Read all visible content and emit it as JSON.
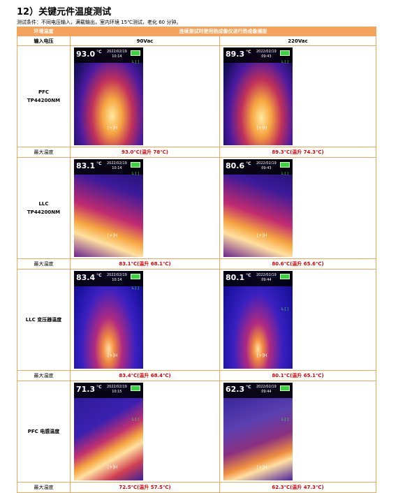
{
  "title": "12）关键元件温度测试",
  "subtitle": "测试条件：不同电压输入，满载输出，室内环境 15℃测试，老化 60 分钟。",
  "header": {
    "env": "环境温度",
    "note": "连续测试时使用热成像仪进行热成像捕捉"
  },
  "voltage_row": {
    "label": "输入电压",
    "v1": "90Vac",
    "v2": "220Vac"
  },
  "max_label": "最大温度",
  "rows": [
    {
      "label_line1": "PFC",
      "label_line2": "TP44200NM",
      "left": {
        "temp": "93.0",
        "date": "2022/02/19",
        "time": "10:14",
        "max": "93.0℃(温升 78℃)"
      },
      "right": {
        "temp": "89.3",
        "date": "2022/02/19",
        "time": "09:43",
        "max": "89.3℃(温升 74.3℃)"
      }
    },
    {
      "label_line1": "LLC",
      "label_line2": "TP44200NM",
      "left": {
        "temp": "83.1",
        "date": "2022/02/19",
        "time": "10:14",
        "max": "83.1℃(温升 68.1℃)"
      },
      "right": {
        "temp": "80.6",
        "date": "2022/02/19",
        "time": "09:43",
        "max": "80.6℃(温升 65.6℃)"
      }
    },
    {
      "label_line1": "LLC 变压器温度",
      "label_line2": "",
      "left": {
        "temp": "83.4",
        "date": "2022/02/19",
        "time": "10:14",
        "max": "83.4℃(温升 68.4℃)"
      },
      "right": {
        "temp": "80.1",
        "date": "2022/02/19",
        "time": "09:44",
        "max": "80.1℃(温升 65.1℃)"
      }
    },
    {
      "label_line1": "PFC 电感温度",
      "label_line2": "",
      "left": {
        "temp": "71.3",
        "date": "2022/02/19",
        "time": "10:15",
        "max": "72.5℃(温升 57.5℃)"
      },
      "right": {
        "temp": "62.3",
        "date": "2022/02/19",
        "time": "09:44",
        "max": "62.3℃(温升 47.3℃)"
      }
    }
  ],
  "unit": "°C",
  "marker_h": "[+]H",
  "marker_l": "L [ ]"
}
